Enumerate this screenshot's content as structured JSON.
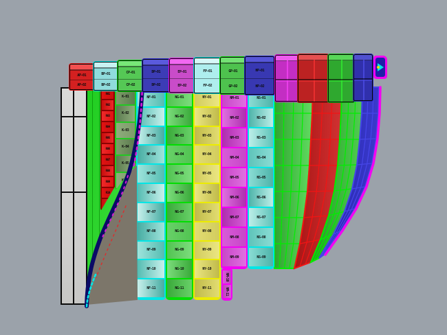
{
  "viewport": {
    "background_color": "#9BA2AA",
    "description": "3D CAD viewport with unfolded hull plate panels"
  },
  "top_row": {
    "boxes": [
      {
        "name": "plate-box-red-1",
        "style": "labels",
        "base": "#E01212",
        "cellbg": "#D42020",
        "face": "#F25050",
        "labels": [
          "AP-01",
          "AP-02"
        ]
      },
      {
        "name": "plate-box-cyan-1",
        "style": "labels",
        "base": "#00E2E2",
        "cellbg": "#8FDCDC",
        "face": "#C8F2F2",
        "labels": [
          "BP-01",
          "BP-02"
        ]
      },
      {
        "name": "plate-box-green-1",
        "style": "labels",
        "base": "#00D800",
        "cellbg": "#55C855",
        "face": "#78E878",
        "labels": [
          "CP-01",
          "CP-02"
        ]
      },
      {
        "name": "plate-box-blue-1",
        "style": "labels",
        "base": "#2222C8",
        "cellbg": "#3C3CB6",
        "face": "#5A5ADC",
        "labels": [
          "DP-01",
          "DP-02"
        ]
      },
      {
        "name": "plate-box-magenta-1",
        "style": "labels",
        "base": "#E202E2",
        "cellbg": "#C94CC9",
        "face": "#F268F2",
        "labels": [
          "EP-01",
          "EP-02"
        ]
      },
      {
        "name": "plate-box-palecyan-1",
        "style": "labels",
        "base": "#00E2E2",
        "cellbg": "#AEEEEE",
        "face": "#D6F8F8",
        "labels": [
          "FP-01",
          "FP-02"
        ]
      },
      {
        "name": "plate-box-green-2",
        "style": "labels",
        "base": "#00D800",
        "cellbg": "#4EC24E",
        "face": "#74E274",
        "labels": [
          "GP-01",
          "GP-02"
        ]
      },
      {
        "name": "plate-box-blue-2",
        "style": "labels",
        "base": "#2222C8",
        "cellbg": "#3838B2",
        "face": "#5656D8",
        "labels": [
          "HP-01",
          "HP-02"
        ]
      },
      {
        "name": "plate-box-magenta-2",
        "style": "grid",
        "base": "#D802D8",
        "cellbg": "#C32EC3",
        "face": "#EE5CEE",
        "line": "#F040F0"
      },
      {
        "name": "plate-box-red-2",
        "style": "grid",
        "base": "#C81616",
        "cellbg": "#BC2222",
        "face": "#E65050",
        "line": "#F03030"
      },
      {
        "name": "plate-box-green-3",
        "style": "grid",
        "base": "#12B012",
        "cellbg": "#2FA82F",
        "face": "#58D858",
        "line": "#30E830"
      },
      {
        "name": "plate-box-blue-3",
        "style": "grid",
        "base": "#2424B4",
        "cellbg": "#3030AC",
        "face": "#5050D0",
        "line": "#4A4AE0"
      }
    ]
  },
  "orientation_marker": {
    "icon": "arrow-marker-icon",
    "frame_color": "#F202F2",
    "fill_color": "#2020A8",
    "glyph_color": "#00E6E6",
    "dot_color": "#F2E202"
  },
  "keel": {
    "name": "keel-plate-pair",
    "fill": "#D6D6D4",
    "outline": "#0B0B0B"
  },
  "backdrop": {
    "name": "green-shell-sheet",
    "color": "#22CC22"
  },
  "columns": [
    {
      "name": "red-frame-column",
      "border": "#8B0000",
      "shades": [
        "#E01212",
        "#C90E0E",
        "#EE2A2A"
      ],
      "labels": [
        "R01",
        "R02",
        "R03",
        "R04",
        "R05",
        "R06",
        "R07",
        "R08",
        "R09",
        "R10",
        "R11"
      ]
    },
    {
      "name": "olive-plate-column",
      "border": "#22C822",
      "shades": [
        "#7E9C6A",
        "#5C7C50",
        "#8FAC7C"
      ],
      "labels": [
        "K-01",
        "K-02",
        "K-03",
        "K-04",
        "K-05",
        "K-06"
      ]
    },
    {
      "name": "cyan-plate-column",
      "border": "#00E6E6",
      "shades": [
        "#9FE4DC",
        "#55BCB2",
        "#C8F0EC",
        "#47ACA2"
      ],
      "labels": [
        "NF-01",
        "NF-02",
        "NF-03",
        "NF-04",
        "NF-05",
        "NF-06",
        "NF-07",
        "NF-08",
        "NF-09",
        "NF-10",
        "NF-11"
      ]
    },
    {
      "name": "green-plate-column",
      "border": "#00DE00",
      "shades": [
        "#52C452",
        "#7CDC7C",
        "#3AAA3A",
        "#68D068"
      ],
      "labels": [
        "NG-01",
        "NG-02",
        "NG-03",
        "NG-04",
        "NG-05",
        "NG-06",
        "NG-07",
        "NG-08",
        "NG-09",
        "NG-10",
        "NG-11"
      ]
    },
    {
      "name": "yellow-plate-column",
      "border": "#ECEC00",
      "shades": [
        "#D2CC5E",
        "#EBE682",
        "#C0BA4A",
        "#E2DC72"
      ],
      "labels": [
        "NY-01",
        "NY-02",
        "NY-03",
        "NY-04",
        "NY-05",
        "NY-06",
        "NY-07",
        "NY-08",
        "NY-09",
        "NY-10",
        "NY-11"
      ]
    },
    {
      "name": "magenta-plate-column",
      "border": "#F202F2",
      "shades": [
        "#C846C8",
        "#E070E0",
        "#AE2EAE",
        "#D85CD8"
      ],
      "labels": [
        "NM-01",
        "NM-02",
        "NM-03",
        "NM-04",
        "NM-05",
        "NM-06",
        "NM-07",
        "NM-08",
        "NM-09"
      ]
    },
    {
      "name": "cyan-plate-column-2",
      "border": "#00E6E6",
      "shades": [
        "#8ADCD4",
        "#4EB4AA",
        "#BCEEE8",
        "#5FC4BA"
      ],
      "labels": [
        "NS-01",
        "NS-02",
        "NS-03",
        "NS-04",
        "NS-05",
        "NS-06",
        "NS-07",
        "NS-08",
        "NS-09"
      ]
    },
    {
      "name": "magenta-edge-strip",
      "border": "#F202F2",
      "shades": [
        "#D85CD8",
        "#C040C0"
      ],
      "vertical": true,
      "labels": [
        "NM-10",
        "NM-11"
      ]
    }
  ],
  "right_surfaces": {
    "bands": [
      {
        "name": "green-hull-band",
        "fill": [
          "#2FA52F",
          "#62DC62"
        ],
        "line": "#00EE00"
      },
      {
        "name": "red-hull-band",
        "fill": [
          "#A81414",
          "#D23232"
        ],
        "line": "#F21414"
      },
      {
        "name": "green-hull-band-2",
        "fill": [
          "#1E9E1E",
          "#52CC52"
        ],
        "line": "#00EE00"
      },
      {
        "name": "blue-hull-band",
        "fill": [
          "#2222A8",
          "#3A3ACC"
        ],
        "line": "#4646E8"
      }
    ],
    "edge_color": "#F302F3"
  },
  "stem": {
    "name": "bow-stem-curve",
    "core_color": "#0B0B66",
    "dash_magenta": "#D818D8",
    "dash_red": "#D83030",
    "dash_cyan": "#00E8E8",
    "shadow_color": "#7C766A"
  }
}
